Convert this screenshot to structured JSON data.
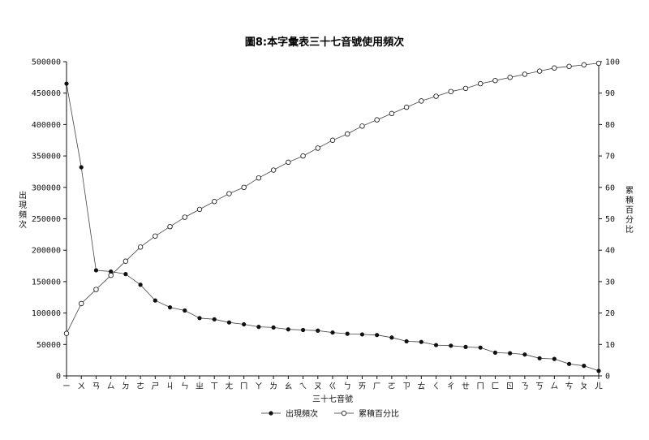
{
  "chart_data": {
    "type": "line",
    "title": "圖8:本字彙表三十七音號使用頻次",
    "xlabel": "三十七音號",
    "ylabel_left": "出現頻次",
    "ylabel_right": "累積百分比",
    "categories": [
      "ㄧ",
      "ㄨ",
      "ㄢ",
      "ㄙ",
      "ㄉ",
      "ㄜ",
      "ㄕ",
      "ㄐ",
      "ㄣ",
      "ㄓ",
      "ㄒ",
      "ㄤ",
      "ㄇ",
      "ㄚ",
      "ㄌ",
      "ㄠ",
      "ㄟ",
      "ㄡ",
      "ㄍ",
      "ㄅ",
      "ㄞ",
      "ㄏ",
      "ㄛ",
      "ㄗ",
      "ㄊ",
      "ㄑ",
      "ㄔ",
      "ㄝ",
      "ㄇ",
      "ㄈ",
      "ㄖ",
      "ㄋ",
      "ㄎ",
      "ㄙ",
      "ㄘ",
      "ㄆ",
      "ㄦ"
    ],
    "series": [
      {
        "name": "出現頻次",
        "axis": "left",
        "marker": "filled-circle",
        "values": [
          465000,
          332000,
          168000,
          166000,
          162000,
          145000,
          120000,
          109000,
          104000,
          92000,
          90000,
          85000,
          82000,
          78000,
          77000,
          74000,
          73000,
          72000,
          69000,
          67000,
          66000,
          65000,
          61000,
          55000,
          54000,
          49000,
          48000,
          46000,
          45000,
          37000,
          36000,
          34000,
          28000,
          27000,
          19000,
          16000,
          8000
        ]
      },
      {
        "name": "累積百分比",
        "axis": "right",
        "marker": "open-circle",
        "values": [
          13.5,
          23.0,
          27.5,
          32.0,
          36.5,
          41.0,
          44.5,
          47.5,
          50.5,
          53.0,
          55.5,
          58.0,
          60.0,
          63.0,
          65.5,
          68.0,
          70.0,
          72.5,
          75.0,
          77.0,
          79.5,
          81.5,
          83.5,
          85.5,
          87.5,
          89.0,
          90.5,
          91.5,
          93.0,
          94.0,
          95.0,
          96.0,
          97.0,
          98.0,
          98.5,
          99.0,
          99.5
        ]
      }
    ],
    "ylim_left": [
      0,
      500000
    ],
    "ylim_right": [
      0,
      100
    ],
    "yticks_left": [
      "0",
      "50000",
      "100000",
      "150000",
      "200000",
      "250000",
      "300000",
      "350000",
      "400000",
      "450000",
      "500000"
    ],
    "yticks_right": [
      "0",
      "10",
      "20",
      "30",
      "40",
      "50",
      "60",
      "70",
      "80",
      "90",
      "100"
    ],
    "grid": false,
    "legend_position": "bottom-center"
  }
}
